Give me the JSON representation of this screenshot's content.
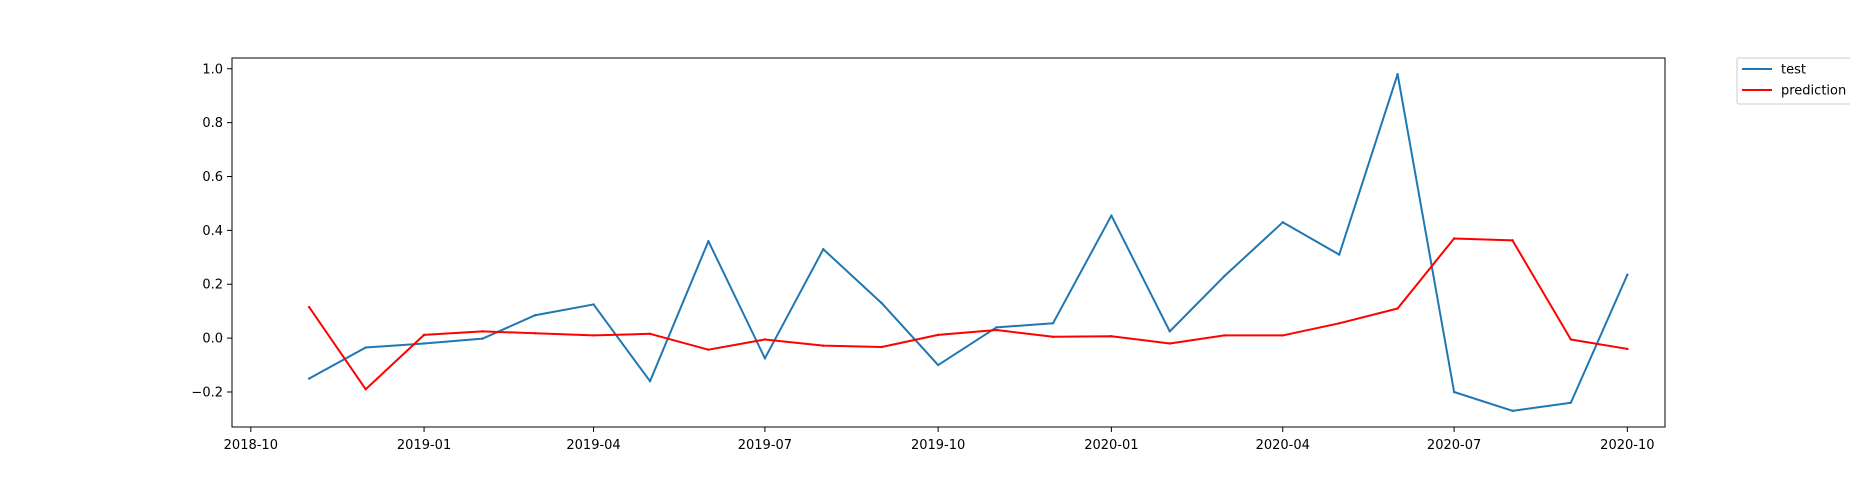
{
  "chart_data": {
    "type": "line",
    "x": [
      "2018-11-01",
      "2018-12-01",
      "2019-01-01",
      "2019-02-01",
      "2019-03-01",
      "2019-04-01",
      "2019-05-01",
      "2019-06-01",
      "2019-07-01",
      "2019-08-01",
      "2019-09-01",
      "2019-10-01",
      "2019-11-01",
      "2019-12-01",
      "2020-01-01",
      "2020-02-01",
      "2020-03-01",
      "2020-04-01",
      "2020-05-01",
      "2020-06-01",
      "2020-07-01",
      "2020-08-01",
      "2020-09-01",
      "2020-10-01"
    ],
    "series": [
      {
        "name": "test",
        "color": "#1f77b4",
        "values": [
          -0.15,
          -0.035,
          -0.02,
          -0.002,
          0.085,
          0.125,
          -0.16,
          0.36,
          -0.075,
          0.33,
          0.13,
          -0.1,
          0.04,
          0.055,
          0.455,
          0.025,
          0.23,
          0.43,
          0.31,
          0.98,
          -0.2,
          -0.27,
          -0.24,
          0.235
        ]
      },
      {
        "name": "prediction",
        "color": "#ff0000",
        "values": [
          0.115,
          -0.19,
          0.012,
          0.025,
          0.018,
          0.01,
          0.016,
          -0.043,
          -0.005,
          -0.028,
          -0.033,
          0.012,
          0.03,
          0.005,
          0.007,
          -0.02,
          0.01,
          0.01,
          0.055,
          0.11,
          0.37,
          0.363,
          -0.005,
          -0.04
        ]
      }
    ],
    "xticks": [
      {
        "date": "2018-10-01",
        "label": "2018-10"
      },
      {
        "date": "2019-01-01",
        "label": "2019-01"
      },
      {
        "date": "2019-04-01",
        "label": "2019-04"
      },
      {
        "date": "2019-07-01",
        "label": "2019-07"
      },
      {
        "date": "2019-10-01",
        "label": "2019-10"
      },
      {
        "date": "2020-01-01",
        "label": "2020-01"
      },
      {
        "date": "2020-04-01",
        "label": "2020-04"
      },
      {
        "date": "2020-07-01",
        "label": "2020-07"
      },
      {
        "date": "2020-10-01",
        "label": "2020-10"
      }
    ],
    "yticks": [
      {
        "value": -0.2,
        "label": "−0.2"
      },
      {
        "value": 0.0,
        "label": "0.0"
      },
      {
        "value": 0.2,
        "label": "0.2"
      },
      {
        "value": 0.4,
        "label": "0.4"
      },
      {
        "value": 0.6,
        "label": "0.6"
      },
      {
        "value": 0.8,
        "label": "0.8"
      },
      {
        "value": 1.0,
        "label": "1.0"
      }
    ],
    "xlim": [
      "2018-09-21",
      "2020-10-21"
    ],
    "ylim": [
      -0.33,
      1.04
    ],
    "title": "",
    "xlabel": "",
    "ylabel": "",
    "grid": false,
    "legend_position": "outside-top-right"
  }
}
